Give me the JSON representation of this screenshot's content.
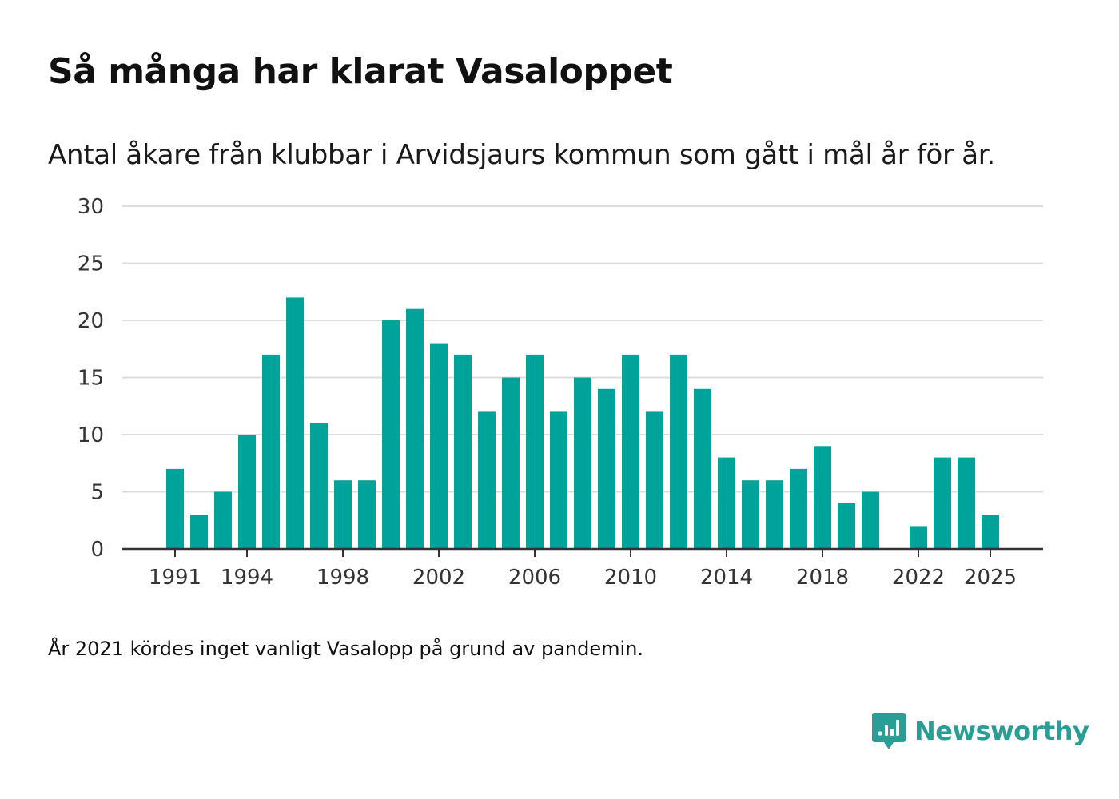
{
  "header": {
    "title": "Så många har klarat Vasaloppet",
    "subtitle": "Antal åkare från klubbar i Arvidsjaurs kommun som gått i mål år för år."
  },
  "footer": {
    "note": "År 2021 kördes inget vanligt Vasalopp på grund av pandemin.",
    "brand": "Newsworthy"
  },
  "colors": {
    "bar": "#00a39a",
    "grid": "#dddddd",
    "axis": "#333333",
    "brand": "#2a9d95"
  },
  "chart_data": {
    "type": "bar",
    "title": "Så många har klarat Vasaloppet",
    "xlabel": "",
    "ylabel": "",
    "ylim": [
      0,
      30
    ],
    "yticks": [
      0,
      5,
      10,
      15,
      20,
      25,
      30
    ],
    "xticks": [
      1991,
      1994,
      1998,
      2002,
      2006,
      2010,
      2014,
      2018,
      2022,
      2025
    ],
    "categories": [
      1991,
      1992,
      1993,
      1994,
      1995,
      1996,
      1997,
      1998,
      1999,
      2000,
      2001,
      2002,
      2003,
      2004,
      2005,
      2006,
      2007,
      2008,
      2009,
      2010,
      2011,
      2012,
      2013,
      2014,
      2015,
      2016,
      2017,
      2018,
      2019,
      2020,
      2021,
      2022,
      2023,
      2024,
      2025
    ],
    "values": [
      7,
      3,
      5,
      10,
      17,
      22,
      11,
      6,
      6,
      20,
      21,
      18,
      17,
      12,
      15,
      17,
      12,
      15,
      14,
      17,
      12,
      17,
      14,
      8,
      6,
      6,
      7,
      9,
      4,
      5,
      null,
      2,
      8,
      8,
      3
    ],
    "grid": true
  }
}
